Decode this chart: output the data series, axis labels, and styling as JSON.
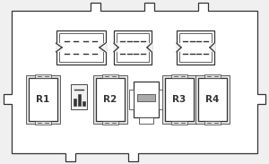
{
  "bg_color": "#f0f0f0",
  "border_color": "#444444",
  "fill_color": "#ffffff",
  "inner_fill": "#f8f8f8",
  "relay_labels": [
    "R1",
    "R2",
    "R3",
    "R4"
  ],
  "line_color": "#333333",
  "dark_color": "#222222"
}
